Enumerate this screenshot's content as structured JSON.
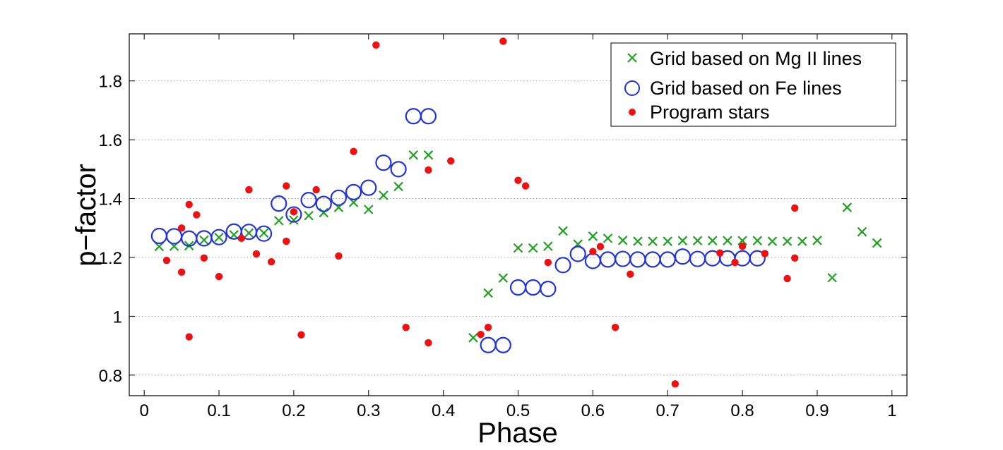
{
  "chart_data": {
    "type": "scatter",
    "xlabel": "Phase",
    "ylabel": "p−factor",
    "xlim": [
      -0.02,
      1.02
    ],
    "ylim": [
      0.73,
      1.96
    ],
    "grid": "y-dotted",
    "legend_position": "top-right",
    "x_ticks": [
      {
        "value": 0,
        "label": "0"
      },
      {
        "value": 0.1,
        "label": "0.1"
      },
      {
        "value": 0.2,
        "label": "0.2"
      },
      {
        "value": 0.3,
        "label": "0.3"
      },
      {
        "value": 0.4,
        "label": "0.4"
      },
      {
        "value": 0.5,
        "label": "0.5"
      },
      {
        "value": 0.6,
        "label": "0.6"
      },
      {
        "value": 0.7,
        "label": "0.7"
      },
      {
        "value": 0.8,
        "label": "0.8"
      },
      {
        "value": 0.9,
        "label": "0.9"
      },
      {
        "value": 1,
        "label": "1"
      }
    ],
    "y_ticks": [
      {
        "value": 0.8,
        "label": "0.8"
      },
      {
        "value": 1.0,
        "label": "1"
      },
      {
        "value": 1.2,
        "label": "1.2"
      },
      {
        "value": 1.4,
        "label": "1.4"
      },
      {
        "value": 1.6,
        "label": "1.6"
      },
      {
        "value": 1.8,
        "label": "1.8"
      }
    ],
    "series": [
      {
        "name": "Grid based on Mg II lines",
        "marker": "x",
        "color": "#22a022",
        "points": [
          [
            0.02,
            1.237,
            0.006
          ],
          [
            0.04,
            1.238,
            0.006
          ],
          [
            0.06,
            1.24,
            0.01
          ],
          [
            0.08,
            1.259,
            0.006
          ],
          [
            0.1,
            1.268,
            0.006
          ],
          [
            0.12,
            1.277,
            0.006
          ],
          [
            0.14,
            1.283,
            0.006
          ],
          [
            0.16,
            1.283,
            0.006
          ],
          [
            0.18,
            1.325,
            0.006
          ],
          [
            0.2,
            1.327,
            0.012
          ],
          [
            0.22,
            1.342,
            0.006
          ],
          [
            0.24,
            1.352,
            0.006
          ],
          [
            0.26,
            1.37,
            0.006
          ],
          [
            0.28,
            1.387,
            0.006
          ],
          [
            0.3,
            1.363,
            0.006
          ],
          [
            0.32,
            1.411,
            0.006
          ],
          [
            0.34,
            1.441,
            0.006
          ],
          [
            0.36,
            1.548,
            0.012
          ],
          [
            0.38,
            1.548,
            0.012
          ],
          [
            0.44,
            0.927,
            0.005
          ],
          [
            0.46,
            1.079,
            0.008
          ],
          [
            0.48,
            1.13,
            0.006
          ],
          [
            0.5,
            1.232,
            0.006
          ],
          [
            0.52,
            1.232,
            0.006
          ],
          [
            0.54,
            1.238,
            0.006
          ],
          [
            0.56,
            1.29,
            0.006
          ],
          [
            0.58,
            1.245,
            0.006
          ],
          [
            0.6,
            1.272,
            0.006
          ],
          [
            0.62,
            1.265,
            0.006
          ],
          [
            0.64,
            1.258,
            0.006
          ],
          [
            0.66,
            1.255,
            0.006
          ],
          [
            0.68,
            1.255,
            0.006
          ],
          [
            0.7,
            1.255,
            0.006
          ],
          [
            0.72,
            1.257,
            0.006
          ],
          [
            0.74,
            1.257,
            0.006
          ],
          [
            0.76,
            1.257,
            0.006
          ],
          [
            0.78,
            1.257,
            0.006
          ],
          [
            0.8,
            1.257,
            0.006
          ],
          [
            0.82,
            1.257,
            0.006
          ],
          [
            0.84,
            1.255,
            0.006
          ],
          [
            0.86,
            1.255,
            0.006
          ],
          [
            0.88,
            1.255,
            0.006
          ],
          [
            0.9,
            1.258,
            0.006
          ],
          [
            0.92,
            1.131,
            0.007
          ],
          [
            0.94,
            1.37,
            0.007
          ],
          [
            0.96,
            1.287,
            0.007
          ],
          [
            0.98,
            1.249,
            0.007
          ]
        ]
      },
      {
        "name": "Grid based on Fe lines",
        "marker": "circle",
        "color": "#2233dd",
        "points": [
          [
            0.02,
            1.273,
            0.007
          ],
          [
            0.04,
            1.272,
            0.007
          ],
          [
            0.06,
            1.264,
            0.007
          ],
          [
            0.08,
            1.265,
            0.007
          ],
          [
            0.1,
            1.269,
            0.007
          ],
          [
            0.12,
            1.288,
            0.007
          ],
          [
            0.14,
            1.287,
            0.007
          ],
          [
            0.16,
            1.281,
            0.007
          ],
          [
            0.18,
            1.383,
            0.007
          ],
          [
            0.2,
            1.346,
            0.007
          ],
          [
            0.22,
            1.395,
            0.007
          ],
          [
            0.24,
            1.382,
            0.007
          ],
          [
            0.26,
            1.403,
            0.007
          ],
          [
            0.28,
            1.422,
            0.007
          ],
          [
            0.3,
            1.437,
            0.007
          ],
          [
            0.32,
            1.522,
            0.04
          ],
          [
            0.34,
            1.5,
            0.006
          ],
          [
            0.36,
            1.68,
            0.007
          ],
          [
            0.38,
            1.68,
            0.007
          ],
          [
            0.46,
            0.902,
            0.007
          ],
          [
            0.48,
            0.902,
            0.007
          ],
          [
            0.5,
            1.098,
            0.155
          ],
          [
            0.52,
            1.098,
            0.155
          ],
          [
            0.54,
            1.093,
            0.006
          ],
          [
            0.56,
            1.174,
            0.007
          ],
          [
            0.58,
            1.212,
            0.025
          ],
          [
            0.6,
            1.188,
            0.007
          ],
          [
            0.62,
            1.193,
            0.007
          ],
          [
            0.64,
            1.195,
            0.007
          ],
          [
            0.66,
            1.193,
            0.007
          ],
          [
            0.68,
            1.193,
            0.007
          ],
          [
            0.7,
            1.193,
            0.007
          ],
          [
            0.72,
            1.203,
            0.007
          ],
          [
            0.74,
            1.195,
            0.007
          ],
          [
            0.76,
            1.197,
            0.007
          ],
          [
            0.78,
            1.197,
            0.007
          ],
          [
            0.8,
            1.197,
            0.007
          ],
          [
            0.82,
            1.197,
            0.007
          ]
        ]
      },
      {
        "name": "Program stars",
        "marker": "dot",
        "color": "#ee1111",
        "points": [
          [
            0.03,
            1.19
          ],
          [
            0.05,
            1.3
          ],
          [
            0.05,
            1.15
          ],
          [
            0.06,
            1.38
          ],
          [
            0.06,
            0.93
          ],
          [
            0.07,
            1.345
          ],
          [
            0.08,
            1.198
          ],
          [
            0.1,
            1.135
          ],
          [
            0.13,
            1.265
          ],
          [
            0.14,
            1.43
          ],
          [
            0.15,
            1.212
          ],
          [
            0.17,
            1.185
          ],
          [
            0.19,
            1.443
          ],
          [
            0.19,
            1.255
          ],
          [
            0.2,
            1.355
          ],
          [
            0.21,
            0.937
          ],
          [
            0.23,
            1.43
          ],
          [
            0.26,
            1.205
          ],
          [
            0.28,
            1.56
          ],
          [
            0.31,
            1.922
          ],
          [
            0.35,
            0.962
          ],
          [
            0.38,
            1.497
          ],
          [
            0.38,
            0.91
          ],
          [
            0.41,
            1.528
          ],
          [
            0.45,
            0.938
          ],
          [
            0.46,
            0.962
          ],
          [
            0.48,
            1.935
          ],
          [
            0.5,
            1.462
          ],
          [
            0.51,
            1.443
          ],
          [
            0.54,
            1.183
          ],
          [
            0.6,
            1.22
          ],
          [
            0.61,
            1.237
          ],
          [
            0.63,
            0.962
          ],
          [
            0.65,
            1.143
          ],
          [
            0.71,
            0.77
          ],
          [
            0.77,
            1.215
          ],
          [
            0.79,
            1.183
          ],
          [
            0.8,
            1.238
          ],
          [
            0.83,
            1.213
          ],
          [
            0.86,
            1.128
          ],
          [
            0.87,
            1.368
          ],
          [
            0.87,
            1.198
          ]
        ]
      }
    ]
  }
}
